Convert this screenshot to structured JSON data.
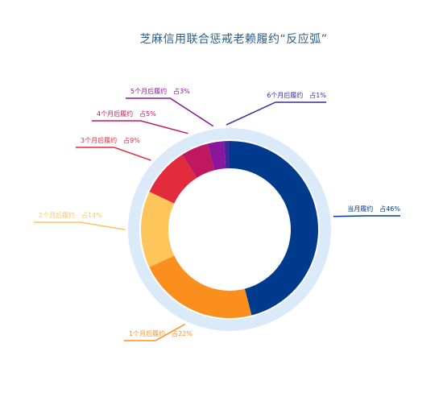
{
  "chart_data": {
    "type": "pie",
    "title": "芝麻信用联合惩戒老赖履约“反应弧”",
    "categories": [
      "当月履约",
      "1个月后履约",
      "2个月后履约",
      "3个月后履约",
      "4个月后履约",
      "5个月后履约",
      "6个月后履约"
    ],
    "values": [
      46,
      22,
      14,
      9,
      5,
      3,
      1
    ],
    "labels": [
      "当月履约　占46%",
      "1个月后履约　占22%",
      "2个月后履约　占14%",
      "3个月后履约　占9%",
      "4个月后履约　占5%",
      "5个月后履约　占3%",
      "6个月后履约　占1%"
    ],
    "colors": [
      "#003a8c",
      "#fb8f1e",
      "#fdc55a",
      "#e22b3c",
      "#c0185f",
      "#8a169c",
      "#3a2a9e"
    ],
    "title_color": "#2b5d8a",
    "halo_color": "#cfe3f5"
  }
}
